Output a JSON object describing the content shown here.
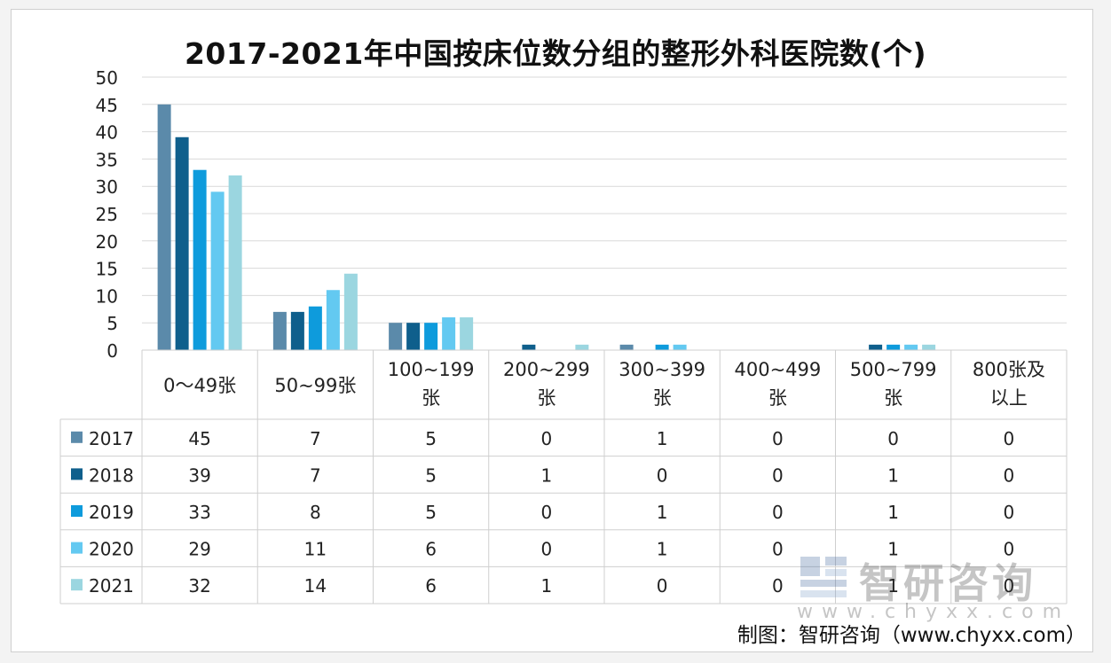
{
  "colors": {
    "2017": "#5b8aaa",
    "2018": "#0f5f8c",
    "2019": "#0e9bdc",
    "2020": "#63c9f1",
    "2021": "#9bd6e0"
  },
  "credit": "制图：智研咨询（www.chyxx.com）",
  "watermark": {
    "name": "智研咨询",
    "url": "www.chyxx.com"
  },
  "chart_data": {
    "type": "bar",
    "title": "2017-2021年中国按床位数分组的整形外科医院数(个)",
    "categories": [
      "0～49张",
      "50~99张",
      "100~199张",
      "200~299张",
      "300~399张",
      "400~499张",
      "500~799张",
      "800张及以上"
    ],
    "category_display": [
      [
        "0～49张"
      ],
      [
        "50~99张"
      ],
      [
        "100~199",
        "张"
      ],
      [
        "200~299",
        "张"
      ],
      [
        "300~399",
        "张"
      ],
      [
        "400~499",
        "张"
      ],
      [
        "500~799",
        "张"
      ],
      [
        "800张及",
        "以上"
      ]
    ],
    "series": [
      {
        "name": "2017",
        "values": [
          45,
          7,
          5,
          0,
          1,
          0,
          0,
          0
        ]
      },
      {
        "name": "2018",
        "values": [
          39,
          7,
          5,
          1,
          0,
          0,
          1,
          0
        ]
      },
      {
        "name": "2019",
        "values": [
          33,
          8,
          5,
          0,
          1,
          0,
          1,
          0
        ]
      },
      {
        "name": "2020",
        "values": [
          29,
          11,
          6,
          0,
          1,
          0,
          1,
          0
        ]
      },
      {
        "name": "2021",
        "values": [
          32,
          14,
          6,
          1,
          0,
          0,
          1,
          0
        ]
      }
    ],
    "ylim": [
      0,
      50
    ],
    "yticks": [
      0,
      5,
      10,
      15,
      20,
      25,
      30,
      35,
      40,
      45,
      50
    ],
    "grid": true,
    "legend": "data-table"
  }
}
